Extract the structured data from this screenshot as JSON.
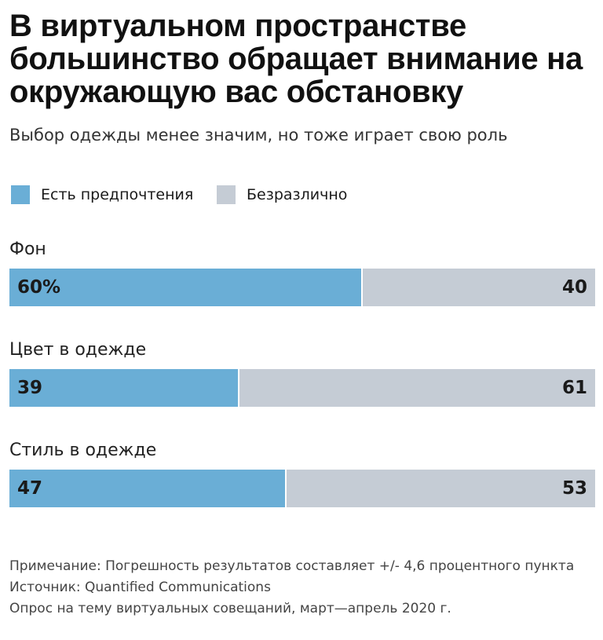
{
  "title": "В виртуальном пространстве большинство обращает внимание на окружающую вас обстановку",
  "subtitle": "Выбор одежды менее значим, но тоже играет свою роль",
  "legend": [
    {
      "label": "Есть предпочтения",
      "color": "#6aaed6"
    },
    {
      "label": "Безразлично",
      "color": "#c5ccd5"
    }
  ],
  "chart_data": {
    "type": "bar",
    "orientation": "horizontal",
    "stacked": true,
    "categories": [
      "Фон",
      "Цвет в одежде",
      "Стиль в одежде"
    ],
    "series": [
      {
        "name": "Есть предпочтения",
        "values": [
          60,
          39,
          47
        ],
        "labels": [
          "60%",
          "39",
          "47"
        ]
      },
      {
        "name": "Безразлично",
        "values": [
          40,
          61,
          53
        ],
        "labels": [
          "40",
          "61",
          "53"
        ]
      }
    ],
    "xlim": [
      0,
      100
    ],
    "grid": false,
    "legend_position": "top-left"
  },
  "notes": [
    "Примечание: Погрешность результатов составляет +/- 4,6 процентного пункта",
    "Источник: Quantified Communications",
    "Опрос на тему виртуальных совещаний, март—апрель 2020 г."
  ]
}
